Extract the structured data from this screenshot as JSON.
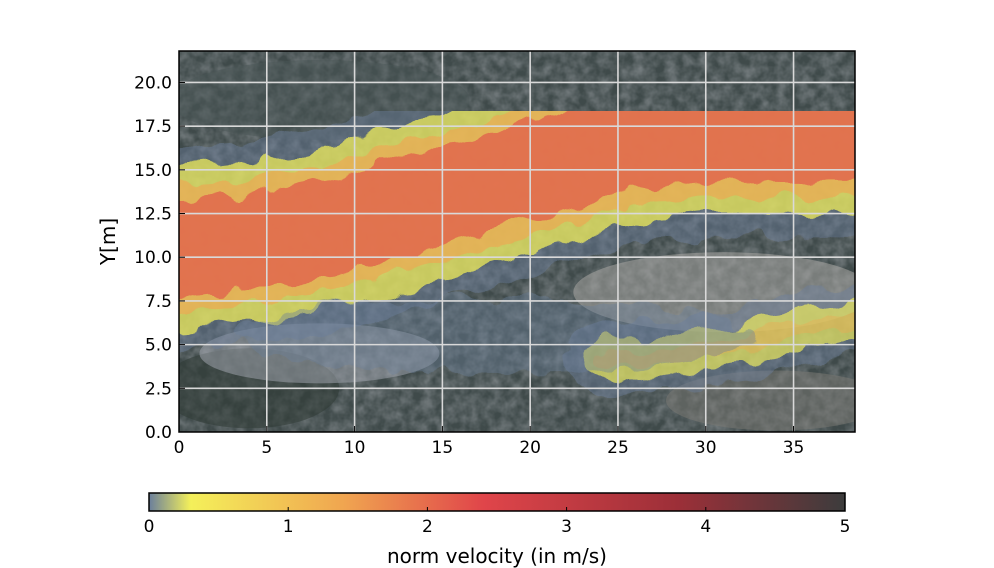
{
  "chart_data": {
    "type": "heatmap",
    "title": "",
    "xlabel": "",
    "ylabel": "Y[m]",
    "xlim": [
      0,
      38.5
    ],
    "ylim": [
      0,
      21.8
    ],
    "x_ticks": [
      0,
      5,
      10,
      15,
      20,
      25,
      30,
      35
    ],
    "x_tick_labels": [
      "0",
      "5",
      "10",
      "15",
      "20",
      "25",
      "30",
      "35"
    ],
    "y_ticks": [
      0,
      2.5,
      5,
      7.5,
      10,
      12.5,
      15,
      17.5,
      20
    ],
    "y_tick_labels": [
      "0.0",
      "2.5",
      "5.0",
      "7.5",
      "10.0",
      "12.5",
      "15.0",
      "17.5",
      "20.0"
    ],
    "grid": true,
    "background": "aerial photograph of riverbed",
    "colorbar": {
      "label": "norm velocity (in m/s)",
      "orientation": "horizontal",
      "range": [
        0,
        5
      ],
      "ticks": [
        0,
        1,
        2,
        3,
        4,
        5
      ],
      "tick_labels": [
        "0",
        "1",
        "2",
        "3",
        "4",
        "5"
      ],
      "colors": [
        "#6b7f9c",
        "#f4f05a",
        "#f0a550",
        "#e0454a",
        "#9c2f38",
        "#3c3c3c"
      ]
    },
    "main_channel_centerline": [
      {
        "x": 0,
        "y": 10.5
      },
      {
        "x": 5,
        "y": 11.0
      },
      {
        "x": 10,
        "y": 12.0
      },
      {
        "x": 15,
        "y": 13.5
      },
      {
        "x": 20,
        "y": 15.0
      },
      {
        "x": 25,
        "y": 16.5
      },
      {
        "x": 30,
        "y": 17.0
      },
      {
        "x": 35,
        "y": 17.0
      },
      {
        "x": 38.5,
        "y": 17.0
      }
    ],
    "secondary_channel_centerline": [
      {
        "x": 24,
        "y": 4.2
      },
      {
        "x": 28,
        "y": 4.3
      },
      {
        "x": 32,
        "y": 5.0
      },
      {
        "x": 36,
        "y": 6.0
      },
      {
        "x": 38.5,
        "y": 6.5
      }
    ],
    "velocity_regions": [
      {
        "x": 3,
        "y": 10.5,
        "value": 2.2
      },
      {
        "x": 10,
        "y": 12.0,
        "value": 2.1
      },
      {
        "x": 18,
        "y": 14.5,
        "value": 2.3
      },
      {
        "x": 25,
        "y": 16.5,
        "value": 2.5
      },
      {
        "x": 32,
        "y": 17.5,
        "value": 2.4
      },
      {
        "x": 36,
        "y": 15.5,
        "value": 2.0
      },
      {
        "x": 30,
        "y": 4.5,
        "value": 0.6
      },
      {
        "x": 20,
        "y": 5.5,
        "value": 0.1
      }
    ]
  }
}
